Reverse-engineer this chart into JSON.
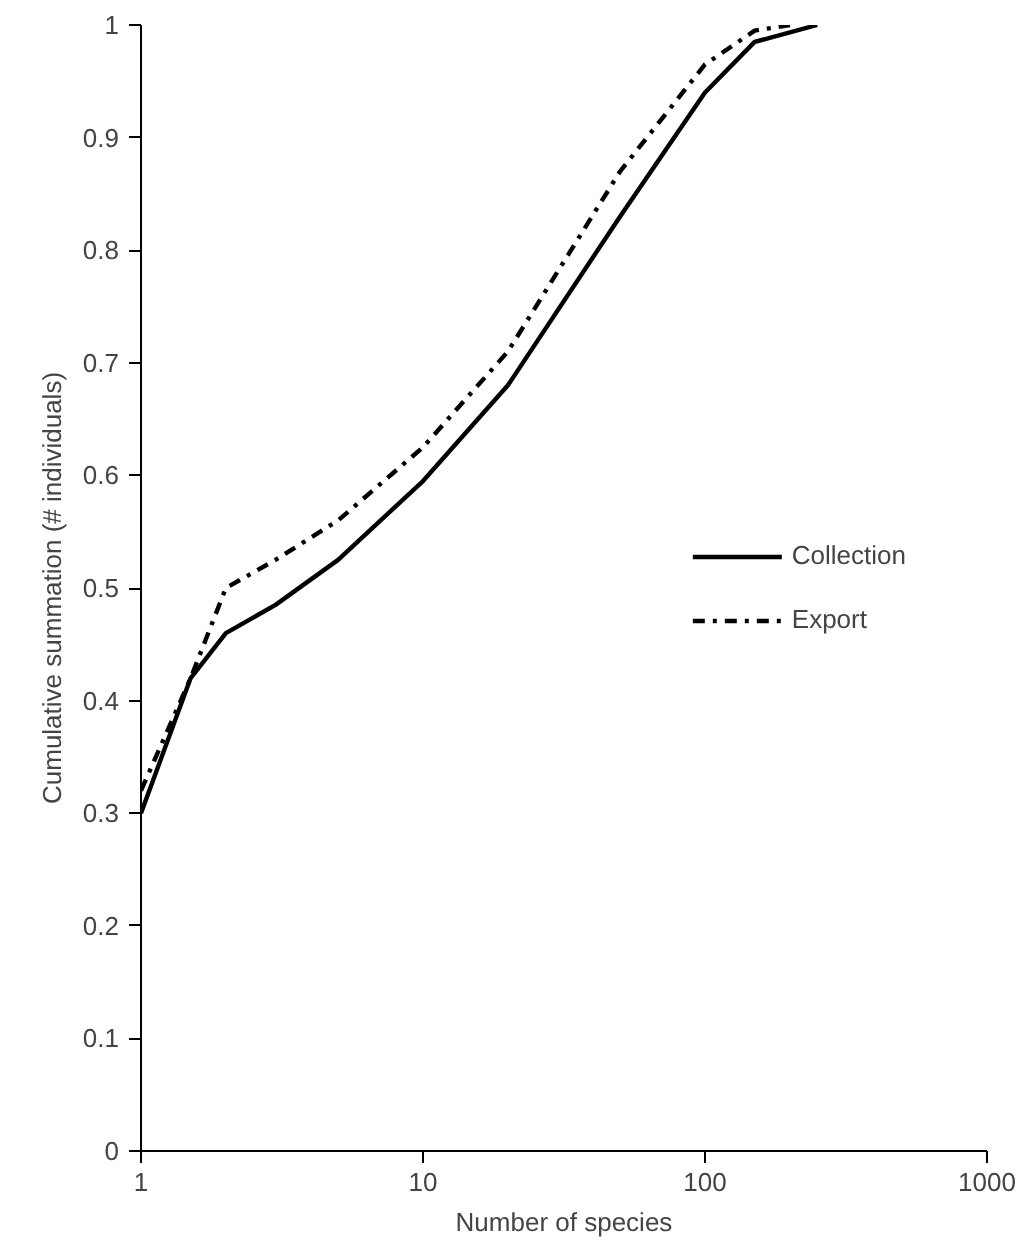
{
  "chart_data": {
    "type": "line",
    "xlabel": "Number of species",
    "ylabel": "Cumulative summation (# individuals)",
    "log": "x",
    "xlim": [
      1,
      1000
    ],
    "xticks": [
      1,
      10,
      100,
      1000
    ],
    "ylim": [
      0,
      1
    ],
    "yticks": [
      0,
      0.1,
      0.2,
      0.3,
      0.4,
      0.5,
      0.6,
      0.7,
      0.8,
      0.9,
      1
    ],
    "grid": false,
    "legend": "right",
    "marker": "none",
    "series": [
      {
        "name": "Collection",
        "color": "#000000",
        "line_style": "solid",
        "x": [
          1,
          1.5,
          2,
          3,
          5,
          10,
          20,
          50,
          100,
          150,
          250
        ],
        "values": [
          0.3,
          0.42,
          0.46,
          0.485,
          0.525,
          0.595,
          0.68,
          0.83,
          0.94,
          0.985,
          1.0
        ]
      },
      {
        "name": "Export",
        "color": "#000000",
        "line_style": "dashdot",
        "x": [
          1,
          1.5,
          2,
          3,
          5,
          10,
          20,
          50,
          100,
          150,
          200
        ],
        "values": [
          0.32,
          0.42,
          0.5,
          0.525,
          0.56,
          0.625,
          0.71,
          0.87,
          0.965,
          0.995,
          1.0
        ]
      }
    ]
  }
}
